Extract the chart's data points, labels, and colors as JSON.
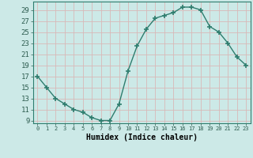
{
  "x": [
    0,
    1,
    2,
    3,
    4,
    5,
    6,
    7,
    8,
    9,
    10,
    11,
    12,
    13,
    14,
    15,
    16,
    17,
    18,
    19,
    20,
    21,
    22,
    23
  ],
  "y": [
    17,
    15,
    13,
    12,
    11,
    10.5,
    9.5,
    9,
    9,
    12,
    18,
    22.5,
    25.5,
    27.5,
    28,
    28.5,
    29.5,
    29.5,
    29,
    26,
    25,
    23,
    20.5,
    19
  ],
  "line_color": "#2e7d6e",
  "marker_color": "#2e7d6e",
  "bg_color": "#cce9e7",
  "grid_color": "#d8b8b8",
  "xlabel": "Humidex (Indice chaleur)",
  "xlim": [
    -0.5,
    23.5
  ],
  "ylim": [
    8.5,
    30.5
  ],
  "yticks": [
    9,
    11,
    13,
    15,
    17,
    19,
    21,
    23,
    25,
    27,
    29
  ],
  "xtick_labels": [
    "0",
    "1",
    "2",
    "3",
    "4",
    "5",
    "6",
    "7",
    "8",
    "9",
    "10",
    "11",
    "12",
    "13",
    "14",
    "15",
    "16",
    "17",
    "18",
    "19",
    "20",
    "21",
    "22",
    "23"
  ]
}
